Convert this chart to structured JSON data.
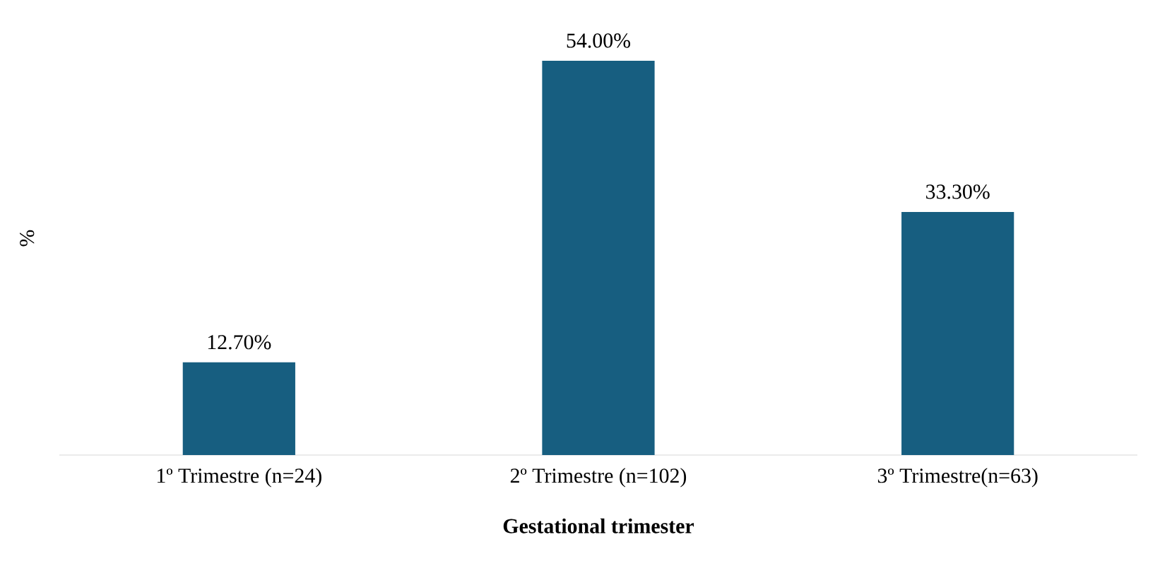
{
  "chart_data": {
    "type": "bar",
    "xlabel": "**Gestational trimester**",
    "ylabel": "%",
    "categories": [
      "1º Trimestre (n=24)",
      "2º Trimestre (n=102)",
      "3º Trimestre(n=63)"
    ],
    "values": [
      12.7,
      54.0,
      33.3
    ],
    "value_labels": [
      "12.70%",
      "54.00%",
      "33.30%"
    ],
    "color": "#175e80"
  }
}
